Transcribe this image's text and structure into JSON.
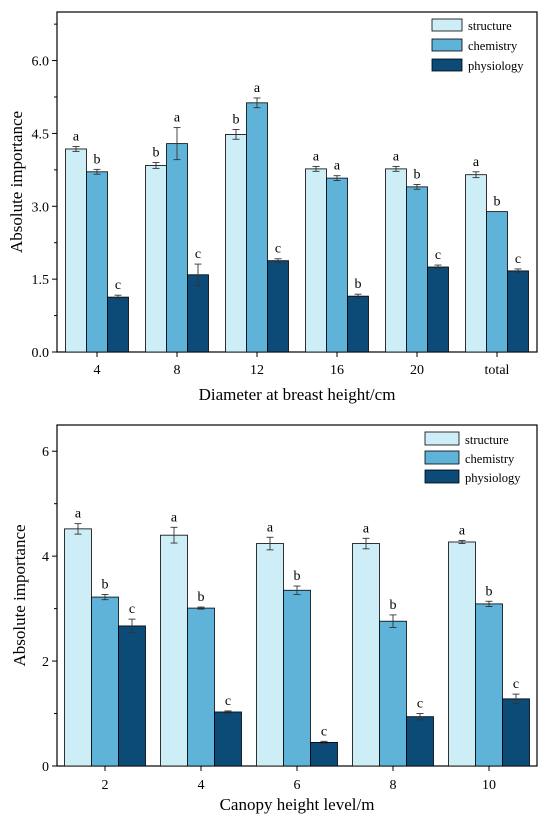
{
  "colors": {
    "structure": "#cdeef7",
    "chemistry": "#5fb3d9",
    "physiology": "#0c4a78",
    "axis": "#000000"
  },
  "chart_data": [
    {
      "type": "bar",
      "xlabel": "Diameter at breast height/cm",
      "ylabel": "Absolute importance",
      "ylim": [
        0,
        7.0
      ],
      "yticks": [
        "0.0",
        "1.5",
        "3.0",
        "4.5",
        "6.0"
      ],
      "ytick_values": [
        0,
        1.5,
        3.0,
        4.5,
        6.0
      ],
      "categories": [
        "4",
        "8",
        "12",
        "16",
        "20",
        "total"
      ],
      "legend_position": "top-right",
      "series": [
        {
          "name": "structure",
          "color_key": "structure",
          "values": [
            4.18,
            3.84,
            4.48,
            3.77,
            3.77,
            3.65
          ],
          "errors": [
            0.05,
            0.06,
            0.1,
            0.05,
            0.05,
            0.06
          ],
          "labels": [
            "a",
            "b",
            "b",
            "a",
            "a",
            "a"
          ]
        },
        {
          "name": "chemistry",
          "color_key": "chemistry",
          "values": [
            3.71,
            4.29,
            5.13,
            3.58,
            3.4,
            2.89
          ],
          "errors": [
            0.05,
            0.33,
            0.1,
            0.05,
            0.05,
            0.0
          ],
          "labels": [
            "b",
            "a",
            "a",
            "a",
            "b",
            "b"
          ]
        },
        {
          "name": "physiology",
          "color_key": "physiology",
          "values": [
            1.13,
            1.59,
            1.88,
            1.15,
            1.75,
            1.67
          ],
          "errors": [
            0.04,
            0.22,
            0.04,
            0.04,
            0.04,
            0.04
          ],
          "labels": [
            "c",
            "c",
            "c",
            "b",
            "c",
            "c"
          ]
        }
      ]
    },
    {
      "type": "bar",
      "xlabel": "Canopy height level/m",
      "ylabel": "Absolute importance",
      "ylim": [
        0,
        6.5
      ],
      "yticks": [
        "0",
        "2",
        "4",
        "6"
      ],
      "ytick_values": [
        0,
        2,
        4,
        6
      ],
      "categories": [
        "2",
        "4",
        "6",
        "8",
        "10"
      ],
      "legend_position": "top-right",
      "series": [
        {
          "name": "structure",
          "color_key": "structure",
          "values": [
            4.52,
            4.4,
            4.24,
            4.24,
            4.27
          ],
          "errors": [
            0.1,
            0.15,
            0.12,
            0.1,
            0.03
          ],
          "labels": [
            "a",
            "a",
            "a",
            "a",
            "a"
          ]
        },
        {
          "name": "chemistry",
          "color_key": "chemistry",
          "values": [
            3.22,
            3.01,
            3.35,
            2.76,
            3.09
          ],
          "errors": [
            0.05,
            0.02,
            0.08,
            0.12,
            0.05
          ],
          "labels": [
            "b",
            "b",
            "b",
            "b",
            "b"
          ]
        },
        {
          "name": "physiology",
          "color_key": "physiology",
          "values": [
            2.67,
            1.03,
            0.45,
            0.94,
            1.28
          ],
          "errors": [
            0.13,
            0.02,
            0.02,
            0.06,
            0.09
          ],
          "labels": [
            "c",
            "c",
            "c",
            "c",
            "c"
          ]
        }
      ]
    }
  ]
}
